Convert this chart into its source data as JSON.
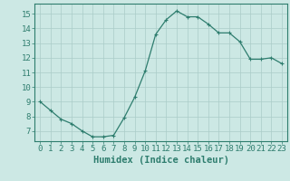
{
  "x": [
    0,
    1,
    2,
    3,
    4,
    5,
    6,
    7,
    8,
    9,
    10,
    11,
    12,
    13,
    14,
    15,
    16,
    17,
    18,
    19,
    20,
    21,
    22,
    23
  ],
  "y": [
    9.0,
    8.4,
    7.8,
    7.5,
    7.0,
    6.6,
    6.6,
    6.7,
    7.9,
    9.3,
    11.1,
    13.6,
    14.6,
    15.2,
    14.8,
    14.8,
    14.3,
    13.7,
    13.7,
    13.1,
    11.9,
    11.9,
    12.0,
    11.6
  ],
  "line_color": "#2e7d6e",
  "marker": "+",
  "marker_size": 3,
  "marker_linewidth": 0.8,
  "line_width": 0.9,
  "bg_color": "#cce8e4",
  "grid_color": "#aaccc8",
  "xlabel": "Humidex (Indice chaleur)",
  "xlabel_fontsize": 7.5,
  "tick_fontsize": 6.5,
  "xlim": [
    -0.5,
    23.5
  ],
  "ylim": [
    6.3,
    15.7
  ],
  "yticks": [
    7,
    8,
    9,
    10,
    11,
    12,
    13,
    14,
    15
  ],
  "xticks": [
    0,
    1,
    2,
    3,
    4,
    5,
    6,
    7,
    8,
    9,
    10,
    11,
    12,
    13,
    14,
    15,
    16,
    17,
    18,
    19,
    20,
    21,
    22,
    23
  ]
}
